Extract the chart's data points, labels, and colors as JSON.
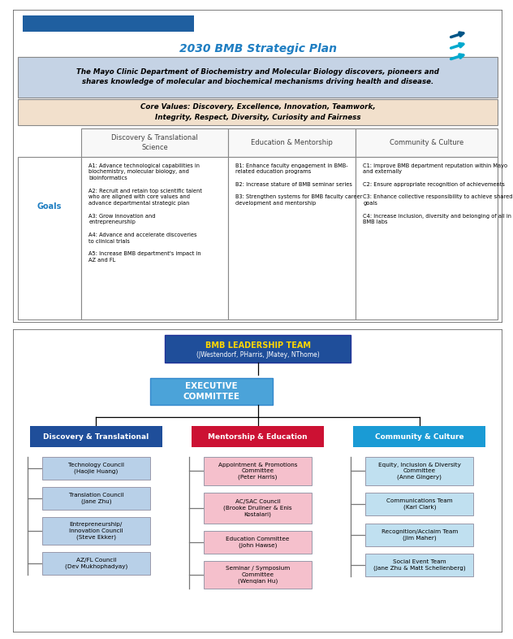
{
  "title": "2030 BMB Strategic Plan",
  "title_color": "#1F7EC2",
  "mission": "The Mayo Clinic Department of Biochemistry and Molecular Biology discovers, pioneers and\nshares knowledge of molecular and biochemical mechanisms driving health and disease.",
  "core_values": "Core Values: Discovery, Excellence, Innovation, Teamwork,\nIntegrity, Respect, Diversity, Curiosity and Fairness",
  "col_headers": [
    "Discovery & Translational\nScience",
    "Education & Mentorship",
    "Community & Culture"
  ],
  "goals_label": "Goals",
  "col1_goals": "A1: Advance technological capabilities in\nbiochemistry, molecular biology, and\nbioinformatics\n\nA2: Recruit and retain top scientific talent\nwho are aligned with core values and\nadvance departmental strategic plan\n\nA3: Grow innovation and\nentrepreneurship\n\nA4: Advance and accelerate discoveries\nto clinical trials\n\nA5: Increase BMB department's impact in\nAZ and FL",
  "col2_goals": "B1: Enhance faculty engagement in BMB-\nrelated education programs\n\nB2: Increase stature of BMB seminar series\n\nB3: Strengthen systems for BMB faculty career\ndevelopment and mentorship",
  "col3_goals": "C1: Improve BMB department reputation within Mayo\nand externally\n\nC2: Ensure appropriate recognition of achievements\n\nC3: Enhance collective responsibility to achieve shared\ngoals\n\nC4: Increase inclusion, diversity and belonging of all in\nBMB labs",
  "org_leadership_title": "BMB LEADERSHIP TEAM",
  "org_leadership_subtitle": "(JWestendorf, PHarris, JMatey, NThome)",
  "org_exec": "EXECUTIVE\nCOMMITTEE",
  "org_cols": [
    "Discovery & Translational",
    "Mentorship & Education",
    "Community & Culture"
  ],
  "org_col_colors": [
    "#1F4E9A",
    "#CC1133",
    "#1A9BD5"
  ],
  "org_left_items": [
    [
      "Technology Council\n(Haojie Huang)",
      "#B8D0E8"
    ],
    [
      "Translation Council\n(Jane Zhu)",
      "#B8D0E8"
    ],
    [
      "Entrepreneurship/\nInnovation Council\n(Steve Ekker)",
      "#B8D0E8"
    ],
    [
      "AZ/FL Council\n(Dev Mukhophadyay)",
      "#B8D0E8"
    ]
  ],
  "org_mid_items": [
    [
      "Appointment & Promotions\nCommittee\n(Peter Harris)",
      "#F5C0CC"
    ],
    [
      "AC/SAC Council\n(Brooke Druilner & Enis\nKostalari)",
      "#F5C0CC"
    ],
    [
      "Education Committee\n(John Hawse)",
      "#F5C0CC"
    ],
    [
      "Seminar / Symposium\nCommittee\n(Wenqian Hu)",
      "#F5C0CC"
    ]
  ],
  "org_right_items": [
    [
      "Equity, Inclusion & Diversity\nCommittee\n(Anne Gingery)",
      "#C0E0F0"
    ],
    [
      "Communications Team\n(Karl Clark)",
      "#C0E0F0"
    ],
    [
      "Recognition/Acclaim Team\n(Jim Maher)",
      "#C0E0F0"
    ],
    [
      "Social Event Team\n(Jane Zhu & Matt Schellenberg)",
      "#C0E0F0"
    ]
  ],
  "bg_mission_color": "#C5D3E5",
  "bg_core_color": "#F2E0CC",
  "border_color": "#888888",
  "goals_color": "#1F7EC2",
  "leadership_bg": "#1F4E9A",
  "leadership_title_color": "#FFD700",
  "exec_bg": "#4BA3D9"
}
